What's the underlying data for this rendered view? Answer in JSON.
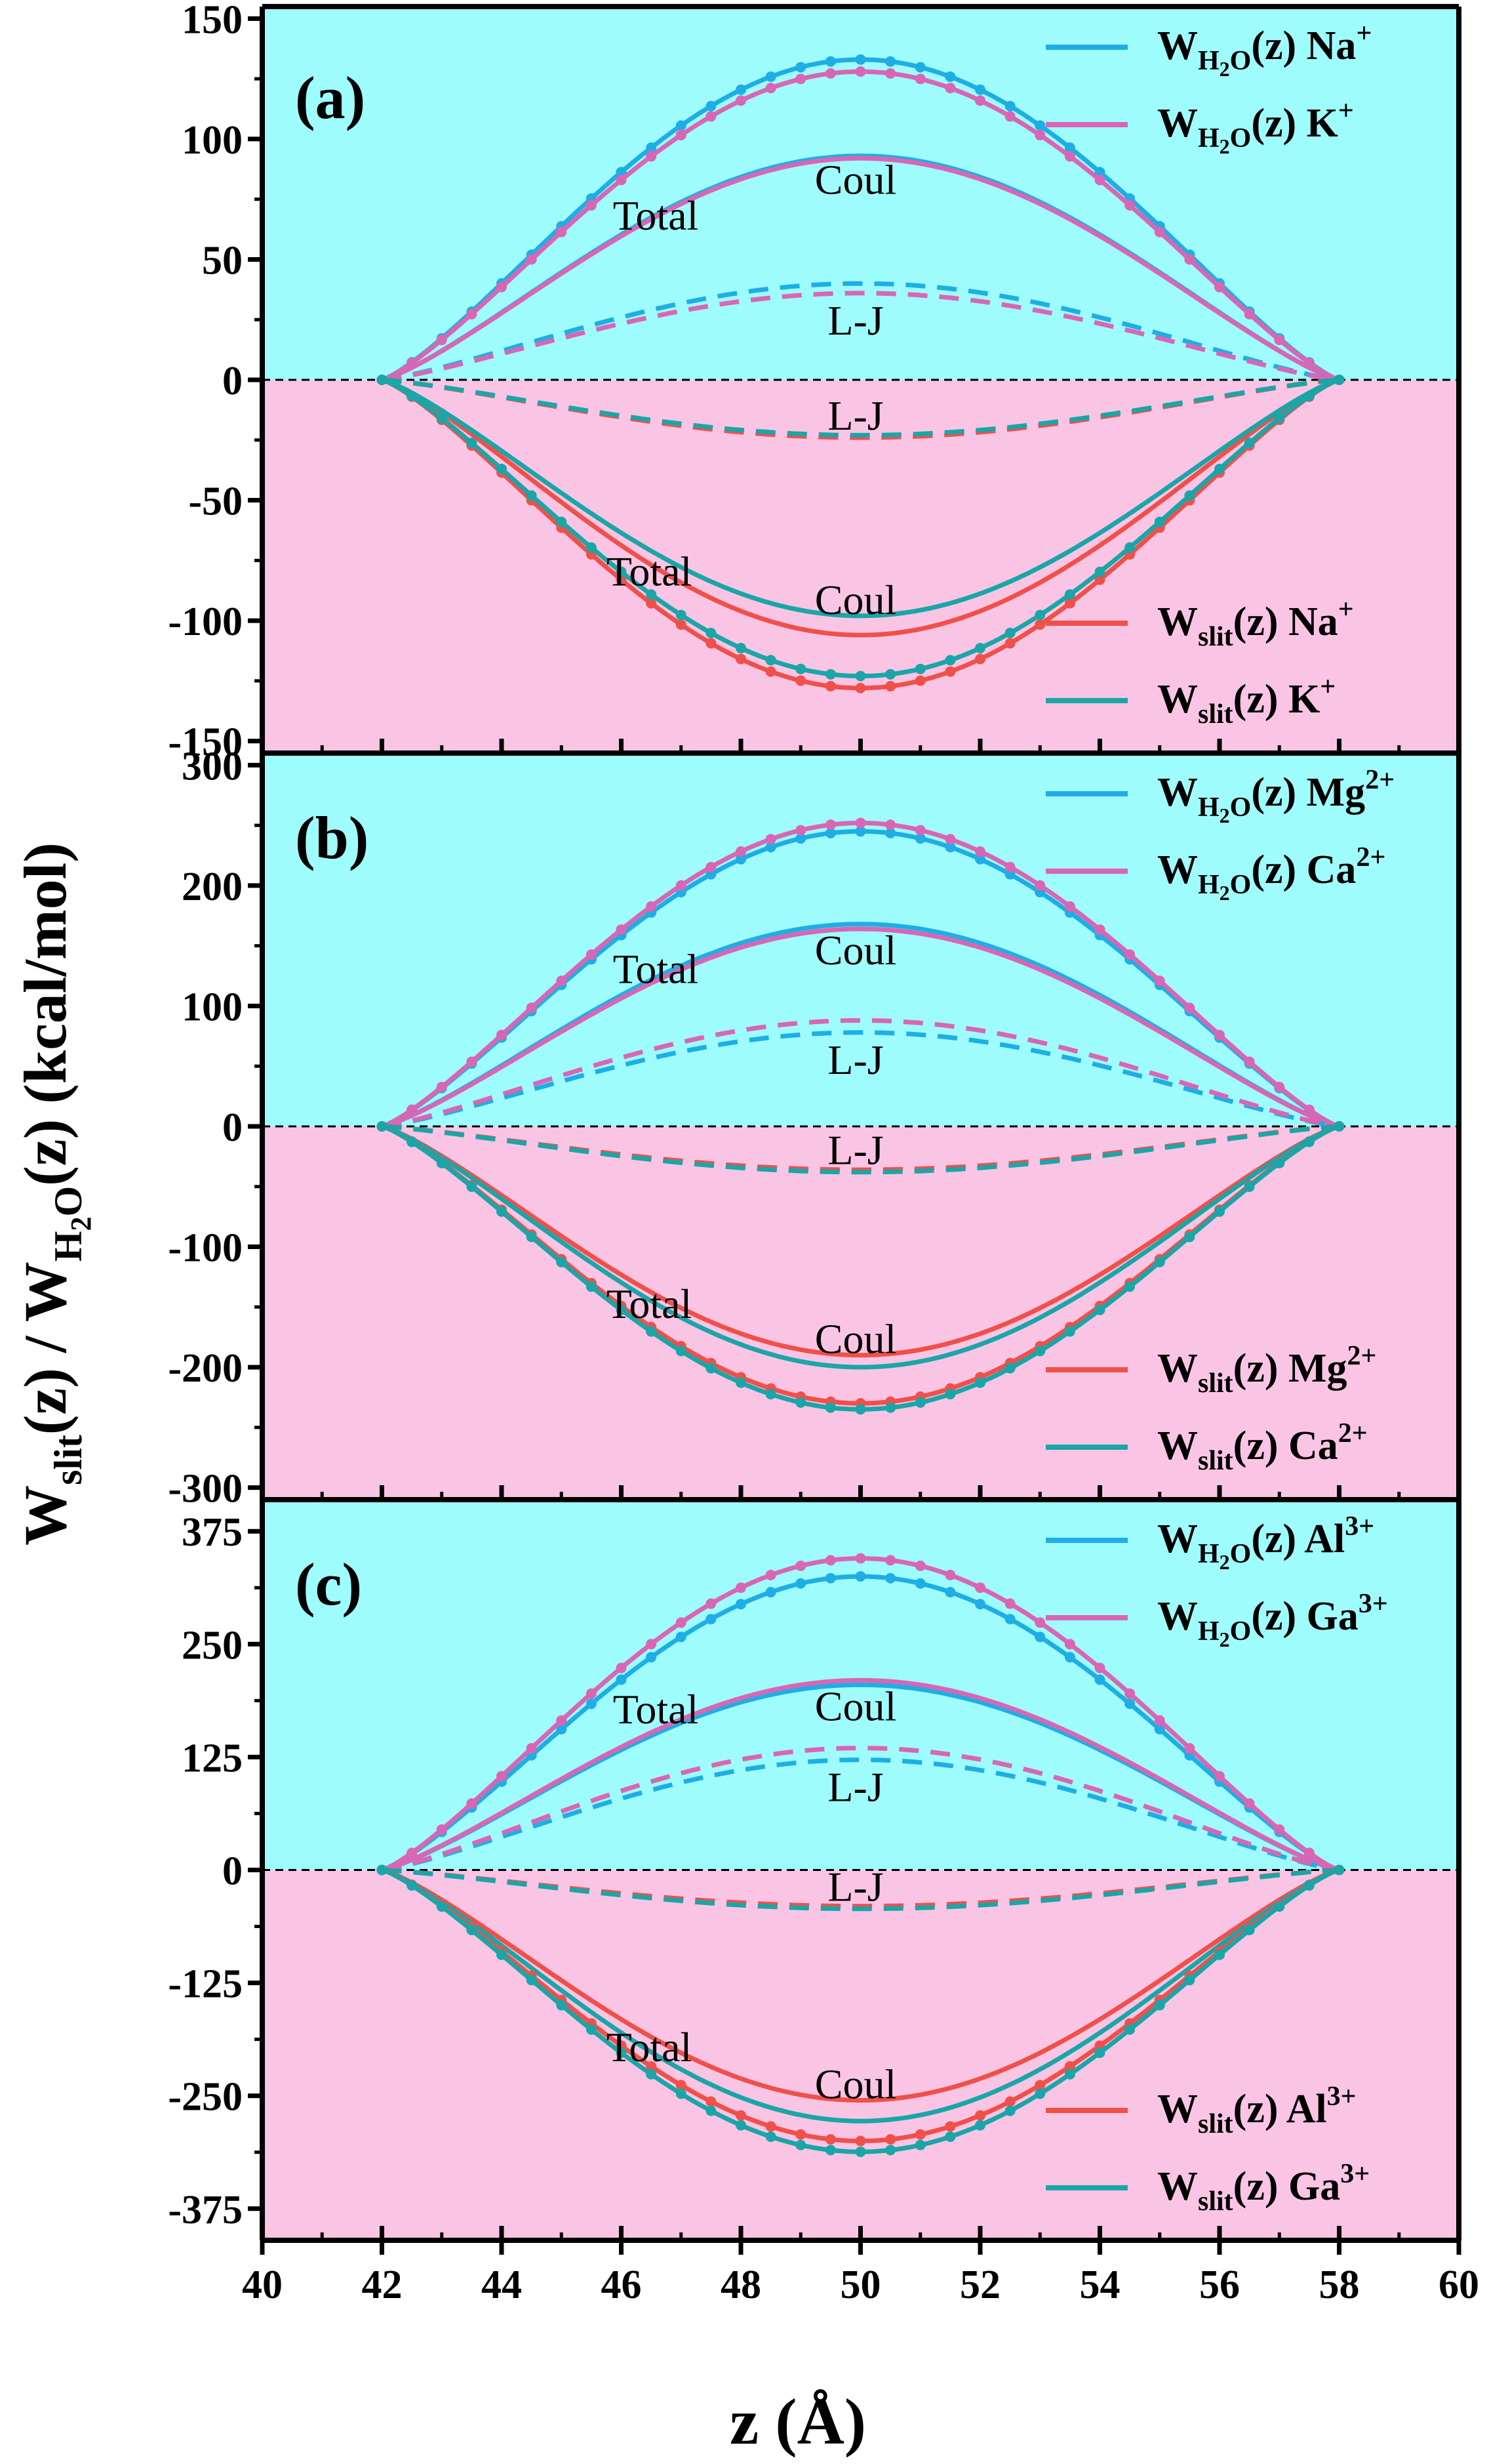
{
  "figure": {
    "ylabel": {
      "w": "W",
      "slit_sub": "slit",
      "z1": "(z) / ",
      "w2": "W",
      "h_sub": "H",
      "two_sub": "2",
      "o_sub": "O",
      "tail": "(z) (kcal/mol)"
    },
    "xlabel": "z (Å)",
    "colors": {
      "upper_bg": "#9ffcfd",
      "lower_bg": "#fac5e4",
      "blue": "#1eaee5",
      "pink": "#d966b4",
      "red": "#f0504a",
      "teal": "#1aa6a8"
    }
  },
  "chart_data": [
    {
      "panel": "(a)",
      "type": "line",
      "xlim": [
        40,
        60
      ],
      "x_ticks": [
        "40",
        "42",
        "44",
        "46",
        "48",
        "50",
        "52",
        "54",
        "56",
        "58",
        "60"
      ],
      "ylim": [
        -155,
        155
      ],
      "y_ticks": [
        150,
        100,
        50,
        0,
        -50,
        -100,
        -150
      ],
      "y_tick_labels": [
        "150",
        "100",
        "50",
        "0",
        "-50",
        "-100",
        "-150"
      ],
      "curve_labels": {
        "total_up": "Total",
        "coul_up": "Coul",
        "lj_up": "L-J",
        "lj_down": "L-J",
        "coul_down": "Coul",
        "total_down": "Total"
      },
      "legend_top": [
        {
          "main": "W",
          "sub": "H",
          "sub2": "2",
          "sub3": "O",
          "mid": "(z)  ",
          "ion": "Na",
          "charge": "+",
          "color": "blue"
        },
        {
          "main": "W",
          "sub": "H",
          "sub2": "2",
          "sub3": "O",
          "mid": "(z)  ",
          "ion": "K",
          "charge": "+",
          "color": "pink"
        }
      ],
      "legend_bottom": [
        {
          "main": "W",
          "sub": "slit",
          "mid": "(z)  ",
          "ion": "Na",
          "charge": "+",
          "color": "red"
        },
        {
          "main": "W",
          "sub": "slit",
          "mid": "(z)  ",
          "ion": "K",
          "charge": "+",
          "color": "teal"
        }
      ],
      "series": [
        {
          "name": "W_H2O Na+ Total",
          "color": "blue",
          "style": "dots",
          "peak": 133
        },
        {
          "name": "W_H2O K+ Total",
          "color": "pink",
          "style": "dots",
          "peak": 128
        },
        {
          "name": "W_H2O Na+ Coul",
          "color": "blue",
          "style": "solid",
          "peak": 93
        },
        {
          "name": "W_H2O K+ Coul",
          "color": "pink",
          "style": "solid",
          "peak": 92
        },
        {
          "name": "W_H2O Na+ L-J",
          "color": "blue",
          "style": "dashed",
          "peak": 40
        },
        {
          "name": "W_H2O K+ L-J",
          "color": "pink",
          "style": "dashed",
          "peak": 36
        },
        {
          "name": "W_slit Na+ L-J",
          "color": "red",
          "style": "dashed",
          "peak": -24
        },
        {
          "name": "W_slit K+ L-J",
          "color": "teal",
          "style": "dashed",
          "peak": -23
        },
        {
          "name": "W_slit Na+ Coul",
          "color": "red",
          "style": "solid",
          "peak": -106
        },
        {
          "name": "W_slit K+ Coul",
          "color": "teal",
          "style": "solid",
          "peak": -98
        },
        {
          "name": "W_slit Na+ Total",
          "color": "red",
          "style": "dots",
          "peak": -128
        },
        {
          "name": "W_slit K+ Total",
          "color": "teal",
          "style": "dots",
          "peak": -123
        }
      ]
    },
    {
      "panel": "(b)",
      "type": "line",
      "xlim": [
        40,
        60
      ],
      "x_ticks": [
        "40",
        "42",
        "44",
        "46",
        "48",
        "50",
        "52",
        "54",
        "56",
        "58",
        "60"
      ],
      "ylim": [
        -310,
        310
      ],
      "y_ticks": [
        300,
        200,
        100,
        0,
        -100,
        -200,
        -300
      ],
      "y_tick_labels": [
        "300",
        "200",
        "100",
        "0",
        "-100",
        "-200",
        "-300"
      ],
      "curve_labels": {
        "total_up": "Total",
        "coul_up": "Coul",
        "lj_up": "L-J",
        "lj_down": "L-J",
        "coul_down": "Coul",
        "total_down": "Total"
      },
      "legend_top": [
        {
          "main": "W",
          "sub": "H",
          "sub2": "2",
          "sub3": "O",
          "mid": "(z)  ",
          "ion": "Mg",
          "charge": "2+",
          "color": "blue"
        },
        {
          "main": "W",
          "sub": "H",
          "sub2": "2",
          "sub3": "O",
          "mid": "(z)  ",
          "ion": "Ca",
          "charge": "2+",
          "color": "pink"
        }
      ],
      "legend_bottom": [
        {
          "main": "W",
          "sub": "slit",
          "mid": "(z)  ",
          "ion": "Mg",
          "charge": "2+",
          "color": "red"
        },
        {
          "main": "W",
          "sub": "slit",
          "mid": "(z)  ",
          "ion": "Ca",
          "charge": "2+",
          "color": "teal"
        }
      ],
      "series": [
        {
          "name": "W_H2O Mg2+ Total",
          "color": "blue",
          "style": "dots",
          "peak": 245
        },
        {
          "name": "W_H2O Ca2+ Total",
          "color": "pink",
          "style": "dots",
          "peak": 252
        },
        {
          "name": "W_H2O Mg2+ Coul",
          "color": "blue",
          "style": "solid",
          "peak": 168
        },
        {
          "name": "W_H2O Ca2+ Coul",
          "color": "pink",
          "style": "solid",
          "peak": 164
        },
        {
          "name": "W_H2O Mg2+ L-J",
          "color": "blue",
          "style": "dashed",
          "peak": 78
        },
        {
          "name": "W_H2O Ca2+ L-J",
          "color": "pink",
          "style": "dashed",
          "peak": 88
        },
        {
          "name": "W_slit Mg2+ L-J",
          "color": "red",
          "style": "dashed",
          "peak": -36
        },
        {
          "name": "W_slit Ca2+ L-J",
          "color": "teal",
          "style": "dashed",
          "peak": -38
        },
        {
          "name": "W_slit Mg2+ Coul",
          "color": "red",
          "style": "solid",
          "peak": -190
        },
        {
          "name": "W_slit Ca2+ Coul",
          "color": "teal",
          "style": "solid",
          "peak": -200
        },
        {
          "name": "W_slit Mg2+ Total",
          "color": "red",
          "style": "dots",
          "peak": -230
        },
        {
          "name": "W_slit Ca2+ Total",
          "color": "teal",
          "style": "dots",
          "peak": -235
        }
      ]
    },
    {
      "panel": "(c)",
      "type": "line",
      "xlim": [
        40,
        60
      ],
      "x_ticks": [
        "40",
        "42",
        "44",
        "46",
        "48",
        "50",
        "52",
        "54",
        "56",
        "58",
        "60"
      ],
      "ylim": [
        -410,
        410
      ],
      "y_ticks": [
        375,
        250,
        125,
        0,
        -125,
        -250,
        -375
      ],
      "y_tick_labels": [
        "375",
        "250",
        "125",
        "0",
        "-125",
        "-250",
        "-375"
      ],
      "curve_labels": {
        "total_up": "Total",
        "coul_up": "Coul",
        "lj_up": "L-J",
        "lj_down": "L-J",
        "coul_down": "Coul",
        "total_down": "Total"
      },
      "legend_top": [
        {
          "main": "W",
          "sub": "H",
          "sub2": "2",
          "sub3": "O",
          "mid": "(z)  ",
          "ion": "Al",
          "charge": "3+",
          "color": "blue"
        },
        {
          "main": "W",
          "sub": "H",
          "sub2": "2",
          "sub3": "O",
          "mid": "(z)  ",
          "ion": "Ga",
          "charge": "3+",
          "color": "pink"
        }
      ],
      "legend_bottom": [
        {
          "main": "W",
          "sub": "slit",
          "mid": "(z)  ",
          "ion": "Al",
          "charge": "3+",
          "color": "red"
        },
        {
          "main": "W",
          "sub": "slit",
          "mid": "(z)  ",
          "ion": "Ga",
          "charge": "3+",
          "color": "teal"
        }
      ],
      "series": [
        {
          "name": "W_H2O Al3+ Total",
          "color": "blue",
          "style": "dots",
          "peak": 325
        },
        {
          "name": "W_H2O Ga3+ Total",
          "color": "pink",
          "style": "dots",
          "peak": 345
        },
        {
          "name": "W_H2O Al3+ Coul",
          "color": "blue",
          "style": "solid",
          "peak": 205
        },
        {
          "name": "W_H2O Ga3+ Coul",
          "color": "pink",
          "style": "solid",
          "peak": 210
        },
        {
          "name": "W_H2O Al3+ L-J",
          "color": "blue",
          "style": "dashed",
          "peak": 122
        },
        {
          "name": "W_H2O Ga3+ L-J",
          "color": "pink",
          "style": "dashed",
          "peak": 135
        },
        {
          "name": "W_slit Al3+ L-J",
          "color": "red",
          "style": "dashed",
          "peak": -40
        },
        {
          "name": "W_slit Ga3+ L-J",
          "color": "teal",
          "style": "dashed",
          "peak": -43
        },
        {
          "name": "W_slit Al3+ Coul",
          "color": "red",
          "style": "solid",
          "peak": -255
        },
        {
          "name": "W_slit Ga3+ Coul",
          "color": "teal",
          "style": "solid",
          "peak": -278
        },
        {
          "name": "W_slit Al3+ Total",
          "color": "red",
          "style": "dots",
          "peak": -300
        },
        {
          "name": "W_slit Ga3+ Total",
          "color": "teal",
          "style": "dots",
          "peak": -312
        }
      ]
    }
  ]
}
